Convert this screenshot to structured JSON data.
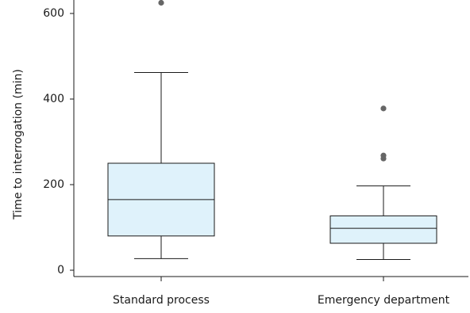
{
  "chart_data": {
    "type": "box",
    "title": "",
    "xlabel": "",
    "ylabel": "Time to interrogation (min)",
    "ylim": [
      -5,
      620
    ],
    "yticks": [
      0,
      200,
      400,
      600
    ],
    "categories": [
      "Standard process",
      "Emergency department"
    ],
    "series": [
      {
        "category": "Standard process",
        "whisker_low": 27,
        "q1": 80,
        "median": 165,
        "q3": 250,
        "whisker_high": 462,
        "outliers": [
          625
        ]
      },
      {
        "category": "Emergency department",
        "whisker_low": 25,
        "q1": 63,
        "median": 98,
        "q3": 127,
        "whisker_high": 197,
        "outliers": [
          261,
          268,
          378
        ]
      }
    ],
    "colors": {
      "box_fill": "#dff2fb",
      "outlier": "#666666",
      "line": "#1a1a1a"
    },
    "grid": false,
    "legend": "none"
  }
}
